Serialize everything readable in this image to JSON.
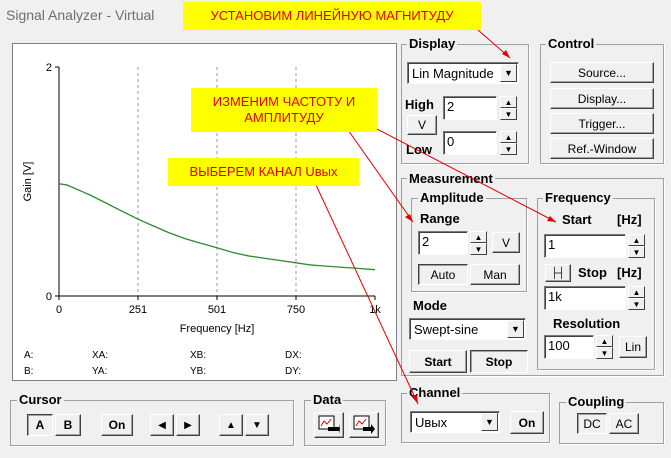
{
  "window": {
    "title": "Signal Analyzer - Virtual"
  },
  "annotations": {
    "note1": "УСТАНОВИМ ЛИНЕЙНУЮ МАГНИТУДУ",
    "note2": "ИЗМЕНИМ ЧАСТОТУ И АМПЛИТУДУ",
    "note3": "ВЫБЕРЕМ КАНАЛ Uвых"
  },
  "chart_data": {
    "type": "line",
    "xlabel": "Frequency [Hz]",
    "ylabel": "Gain [V]",
    "xlim": [
      0,
      1000
    ],
    "ylim": [
      0,
      2
    ],
    "x_ticks": [
      "0",
      "251",
      "501",
      "750",
      "1k"
    ],
    "y_ticks": [
      "2",
      "0"
    ],
    "grid": "vertical dashed",
    "series": [
      {
        "color": "#2e8b2e",
        "x": [
          0,
          25,
          50,
          75,
          100,
          150,
          200,
          251,
          300,
          350,
          400,
          450,
          501,
          550,
          600,
          650,
          700,
          750,
          800,
          850,
          900,
          950,
          1000
        ],
        "values": [
          0.98,
          0.97,
          0.94,
          0.91,
          0.88,
          0.81,
          0.74,
          0.67,
          0.61,
          0.55,
          0.5,
          0.46,
          0.42,
          0.38,
          0.35,
          0.33,
          0.31,
          0.29,
          0.27,
          0.26,
          0.25,
          0.24,
          0.23
        ]
      }
    ]
  },
  "readouts": {
    "a": "A:",
    "b": "B:",
    "xa": "XA:",
    "ya": "YA:",
    "xb": "XB:",
    "yb": "YB:",
    "dx": "DX:",
    "dy": "DY:"
  },
  "display": {
    "label": "Display",
    "mode": "Lin Magnitude",
    "high_label": "High",
    "high_value": "2",
    "unit_button": "V",
    "low_label": "Low",
    "low_value": "0"
  },
  "control": {
    "label": "Control",
    "source": "Source...",
    "display": "Display...",
    "trigger": "Trigger...",
    "ref_window": "Ref.-Window"
  },
  "measurement": {
    "label": "Measurement",
    "amplitude_label": "Amplitude",
    "range_label": "Range",
    "range_value": "2",
    "range_unit": "V",
    "auto": "Auto",
    "man": "Man",
    "frequency_label": "Frequency",
    "start_label": "Start",
    "start_unit": "[Hz]",
    "start_value": "1",
    "stop_label": "Stop",
    "stop_unit": "[Hz]",
    "stop_value": "1k",
    "mode_label": "Mode",
    "mode_value": "Swept-sine",
    "start_button": "Start",
    "stop_button": "Stop",
    "resolution_label": "Resolution",
    "resolution_value": "100",
    "lin_button": "Lin"
  },
  "channel": {
    "label": "Channel",
    "value": "Uвых",
    "on": "On"
  },
  "coupling": {
    "label": "Coupling",
    "dc": "DC",
    "ac": "AC"
  },
  "cursor": {
    "label": "Cursor",
    "a": "A",
    "b": "B",
    "on": "On",
    "left": "◀",
    "right": "▶",
    "up": "▲",
    "down": "▼"
  },
  "data": {
    "label": "Data"
  }
}
